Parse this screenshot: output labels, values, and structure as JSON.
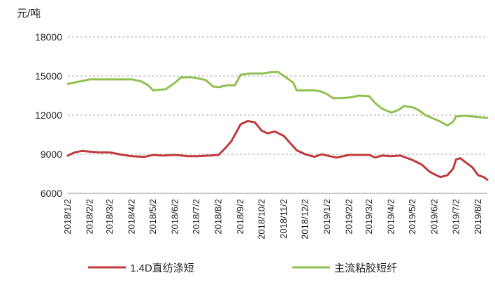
{
  "chart_data": {
    "type": "line",
    "ylabel": "元/吨",
    "ylim": [
      6000,
      18000
    ],
    "yticks": [
      6000,
      9000,
      12000,
      15000,
      18000
    ],
    "grid": "horizontal-dashed",
    "legend_position": "bottom",
    "x_tick_labels": [
      "2018/1/2",
      "2018/2/2",
      "2018/3/2",
      "2018/4/2",
      "2018/5/2",
      "2018/6/2",
      "2018/7/2",
      "2018/8/2",
      "2018/9/2",
      "2018/10/2",
      "2018/11/2",
      "2018/12/2",
      "2019/1/2",
      "2019/2/2",
      "2019/3/2",
      "2019/4/2",
      "2019/5/2",
      "2019/6/2",
      "2019/7/2",
      "2019/8/2"
    ],
    "series": [
      {
        "name": "1.4D直纺涤短",
        "color": "#c0393b",
        "points": [
          [
            "2018/1/2",
            8900
          ],
          [
            "2018/1/12",
            9150
          ],
          [
            "2018/1/22",
            9250
          ],
          [
            "2018/2/2",
            9200
          ],
          [
            "2018/2/15",
            9150
          ],
          [
            "2018/3/2",
            9150
          ],
          [
            "2018/3/15",
            9000
          ],
          [
            "2018/4/2",
            8850
          ],
          [
            "2018/4/20",
            8800
          ],
          [
            "2018/5/2",
            8950
          ],
          [
            "2018/5/15",
            8900
          ],
          [
            "2018/6/2",
            8950
          ],
          [
            "2018/6/20",
            8850
          ],
          [
            "2018/7/2",
            8850
          ],
          [
            "2018/7/20",
            8900
          ],
          [
            "2018/8/2",
            8950
          ],
          [
            "2018/8/12",
            9500
          ],
          [
            "2018/8/20",
            10000
          ],
          [
            "2018/9/2",
            11300
          ],
          [
            "2018/9/12",
            11550
          ],
          [
            "2018/9/22",
            11450
          ],
          [
            "2018/10/2",
            10800
          ],
          [
            "2018/10/10",
            10600
          ],
          [
            "2018/10/20",
            10750
          ],
          [
            "2018/11/2",
            10400
          ],
          [
            "2018/11/10",
            9900
          ],
          [
            "2018/11/20",
            9300
          ],
          [
            "2018/12/2",
            9000
          ],
          [
            "2018/12/15",
            8800
          ],
          [
            "2018/12/25",
            9000
          ],
          [
            "2019/1/2",
            8900
          ],
          [
            "2019/1/15",
            8750
          ],
          [
            "2019/2/2",
            8950
          ],
          [
            "2019/2/15",
            8950
          ],
          [
            "2019/3/2",
            8950
          ],
          [
            "2019/3/10",
            8750
          ],
          [
            "2019/3/20",
            8900
          ],
          [
            "2019/4/2",
            8850
          ],
          [
            "2019/4/15",
            8900
          ],
          [
            "2019/5/2",
            8550
          ],
          [
            "2019/5/15",
            8200
          ],
          [
            "2019/5/25",
            7700
          ],
          [
            "2019/6/2",
            7450
          ],
          [
            "2019/6/10",
            7250
          ],
          [
            "2019/6/20",
            7400
          ],
          [
            "2019/6/28",
            7900
          ],
          [
            "2019/7/2",
            8600
          ],
          [
            "2019/7/8",
            8700
          ],
          [
            "2019/7/15",
            8400
          ],
          [
            "2019/7/25",
            8000
          ],
          [
            "2019/8/2",
            7400
          ],
          [
            "2019/8/10",
            7250
          ],
          [
            "2019/8/15",
            7050
          ]
        ]
      },
      {
        "name": "主流粘胶短纤",
        "color": "#92c050",
        "points": [
          [
            "2018/1/2",
            14400
          ],
          [
            "2018/1/20",
            14600
          ],
          [
            "2018/2/2",
            14750
          ],
          [
            "2018/3/2",
            14750
          ],
          [
            "2018/4/2",
            14750
          ],
          [
            "2018/4/15",
            14600
          ],
          [
            "2018/4/25",
            14300
          ],
          [
            "2018/5/2",
            13900
          ],
          [
            "2018/5/20",
            14000
          ],
          [
            "2018/6/2",
            14500
          ],
          [
            "2018/6/10",
            14900
          ],
          [
            "2018/6/25",
            14900
          ],
          [
            "2018/7/2",
            14850
          ],
          [
            "2018/7/15",
            14700
          ],
          [
            "2018/7/25",
            14200
          ],
          [
            "2018/8/2",
            14150
          ],
          [
            "2018/8/15",
            14300
          ],
          [
            "2018/8/25",
            14300
          ],
          [
            "2018/9/2",
            15100
          ],
          [
            "2018/9/15",
            15200
          ],
          [
            "2018/10/2",
            15200
          ],
          [
            "2018/10/15",
            15300
          ],
          [
            "2018/10/25",
            15300
          ],
          [
            "2018/11/2",
            15000
          ],
          [
            "2018/11/15",
            14500
          ],
          [
            "2018/11/20",
            13900
          ],
          [
            "2018/12/2",
            13900
          ],
          [
            "2018/12/15",
            13900
          ],
          [
            "2018/12/25",
            13800
          ],
          [
            "2019/1/2",
            13600
          ],
          [
            "2019/1/10",
            13300
          ],
          [
            "2019/1/20",
            13300
          ],
          [
            "2019/2/2",
            13350
          ],
          [
            "2019/2/15",
            13500
          ],
          [
            "2019/3/2",
            13450
          ],
          [
            "2019/3/10",
            12950
          ],
          [
            "2019/3/20",
            12500
          ],
          [
            "2019/4/2",
            12200
          ],
          [
            "2019/4/12",
            12400
          ],
          [
            "2019/4/20",
            12700
          ],
          [
            "2019/5/2",
            12600
          ],
          [
            "2019/5/10",
            12400
          ],
          [
            "2019/5/20",
            12000
          ],
          [
            "2019/6/2",
            11700
          ],
          [
            "2019/6/10",
            11500
          ],
          [
            "2019/6/20",
            11200
          ],
          [
            "2019/6/28",
            11500
          ],
          [
            "2019/7/2",
            11900
          ],
          [
            "2019/7/15",
            11950
          ],
          [
            "2019/7/25",
            11900
          ],
          [
            "2019/8/2",
            11850
          ],
          [
            "2019/8/15",
            11800
          ]
        ]
      }
    ]
  }
}
